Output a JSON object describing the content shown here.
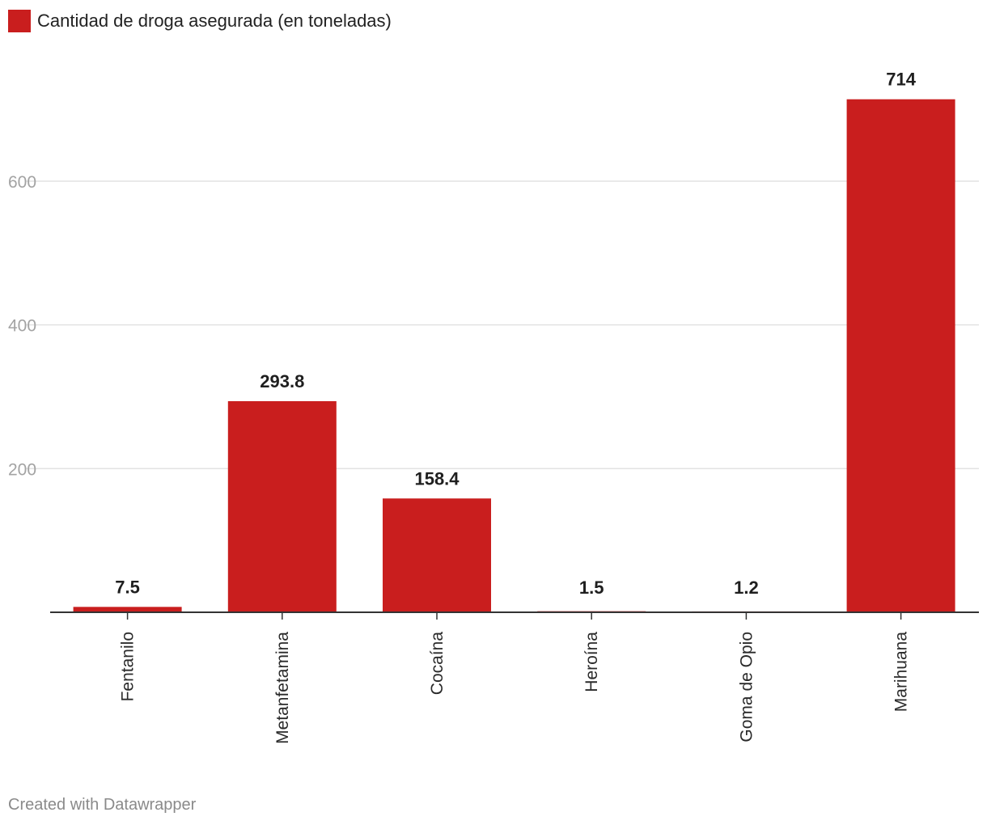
{
  "chart_data": {
    "type": "bar",
    "legend_position": "top-left",
    "series": [
      {
        "name": "Cantidad de droga asegurada (en toneladas)",
        "color": "#c91e1e",
        "values": [
          7.5,
          293.8,
          158.4,
          1.5,
          1.2,
          714
        ]
      }
    ],
    "categories": [
      "Fentanilo",
      "Metanfetamina",
      "Cocaína",
      "Heroína",
      "Goma de Opio",
      "Marihuana"
    ],
    "data_labels": [
      "7.5",
      "293.8",
      "158.4",
      "1.5",
      "1.2",
      "714"
    ],
    "yticks": [
      200,
      400,
      600
    ],
    "ylim": [
      0,
      800
    ],
    "grid": true,
    "xlabel": "",
    "ylabel": ""
  },
  "footer": {
    "credit": "Created with Datawrapper"
  }
}
